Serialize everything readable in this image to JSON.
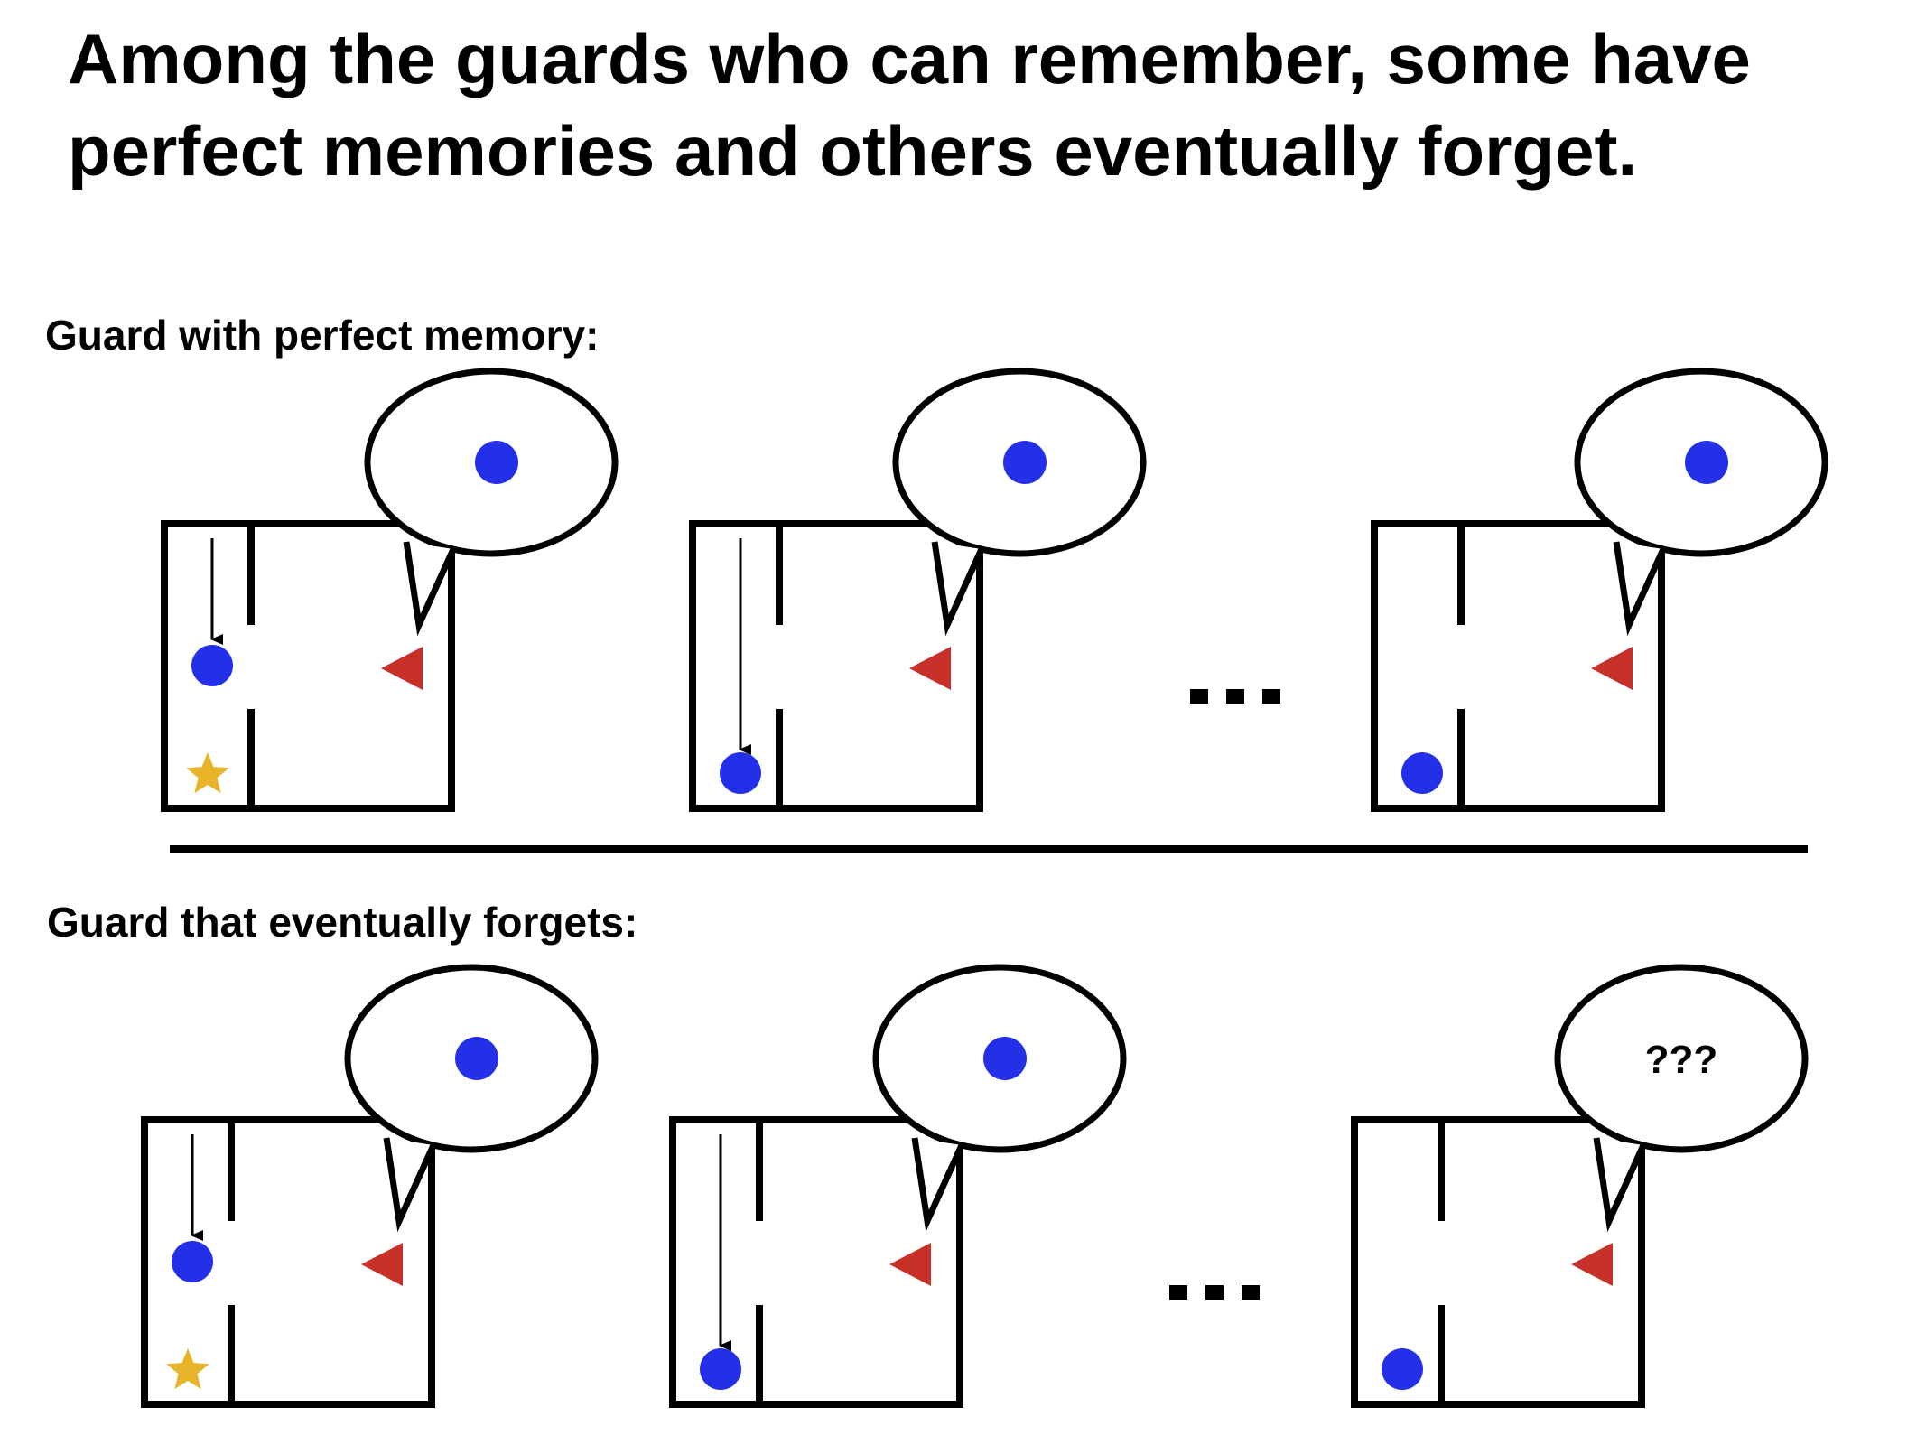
{
  "title": "Among the guards who can remember, some have perfect memories and others eventually forget.",
  "sections": [
    {
      "label": "Guard with perfect memory:",
      "frames": [
        {
          "memory": "blue-dot",
          "agent_position": "middle",
          "star": true,
          "arrow": "short"
        },
        {
          "memory": "blue-dot",
          "agent_position": "bottom",
          "star": false,
          "arrow": "long"
        },
        {
          "memory": "blue-dot",
          "agent_position": "bottom",
          "star": false,
          "arrow": "none"
        }
      ],
      "ellipsis": "..."
    },
    {
      "label": "Guard that eventually forgets:",
      "frames": [
        {
          "memory": "blue-dot",
          "agent_position": "middle",
          "star": true,
          "arrow": "short"
        },
        {
          "memory": "blue-dot",
          "agent_position": "bottom",
          "star": false,
          "arrow": "long"
        },
        {
          "memory": "unknown",
          "agent_position": "bottom",
          "star": false,
          "arrow": "none",
          "bubble_text": "???"
        }
      ],
      "ellipsis": "..."
    }
  ],
  "colors": {
    "agent": "#2330e8",
    "guard": "#c8312a",
    "star": "#e8b52a",
    "line": "#000000"
  }
}
